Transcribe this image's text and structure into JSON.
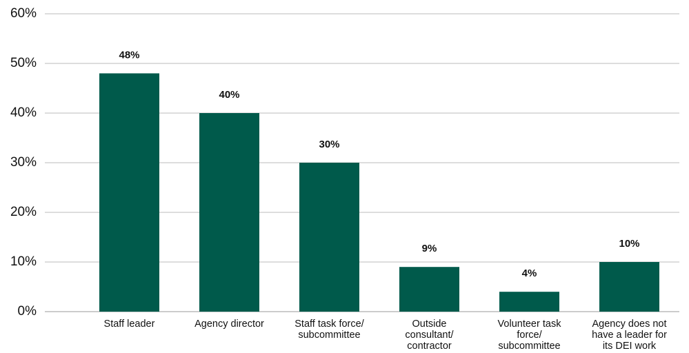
{
  "chart_data": {
    "type": "bar",
    "categories": [
      "Staff leader",
      "Agency director",
      "Staff task force/\nsubcommittee",
      "Outside\nconsultant/\ncontractor",
      "Volunteer task\nforce/\nsubcommittee",
      "Agency does not\nhave a leader for\nits DEI work"
    ],
    "values": [
      48,
      40,
      30,
      9,
      4,
      10
    ],
    "value_labels": [
      "48%",
      "40%",
      "30%",
      "9%",
      "4%",
      "10%"
    ],
    "color": "#005a4b",
    "ylim": [
      0,
      60
    ],
    "yticks": [
      {
        "value": 0,
        "label": "0%"
      },
      {
        "value": 10,
        "label": "10%"
      },
      {
        "value": 20,
        "label": "20%"
      },
      {
        "value": 30,
        "label": "30%"
      },
      {
        "value": 40,
        "label": "40%"
      },
      {
        "value": 50,
        "label": "50%"
      },
      {
        "value": 60,
        "label": "60%"
      }
    ],
    "grid": true
  }
}
